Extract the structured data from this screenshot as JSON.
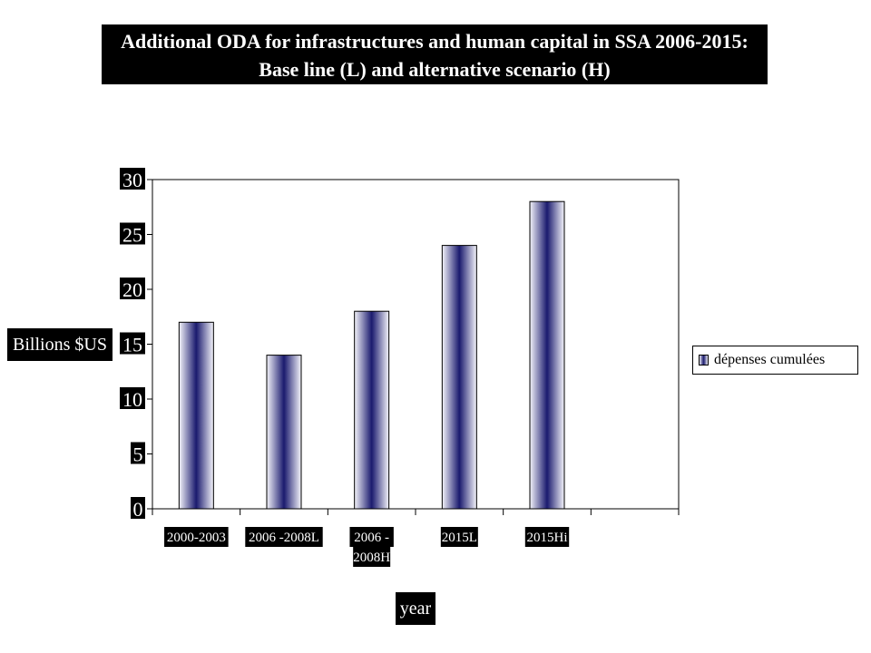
{
  "chart_data": {
    "type": "bar",
    "title_lines": [
      "Additional ODA for infrastructures and human capital in SSA 2006-2015:",
      "Base line (L) and alternative scenario (H)"
    ],
    "xlabel": "year",
    "ylabel": "Billions $US",
    "ylim": [
      0,
      30
    ],
    "yticks": [
      "0",
      "5",
      "10",
      "15",
      "20",
      "25",
      "30"
    ],
    "categories": [
      [
        "2000-2003"
      ],
      [
        "2006 -2008L"
      ],
      [
        "2006 -",
        "2008H"
      ],
      [
        "2015L"
      ],
      [
        "2015Hi"
      ]
    ],
    "series": [
      {
        "name": "dépenses cumulées",
        "values": [
          17,
          14,
          18,
          24,
          28
        ]
      }
    ],
    "grid": false,
    "legend_position": "right",
    "bar_color": "#1a1a6e"
  }
}
